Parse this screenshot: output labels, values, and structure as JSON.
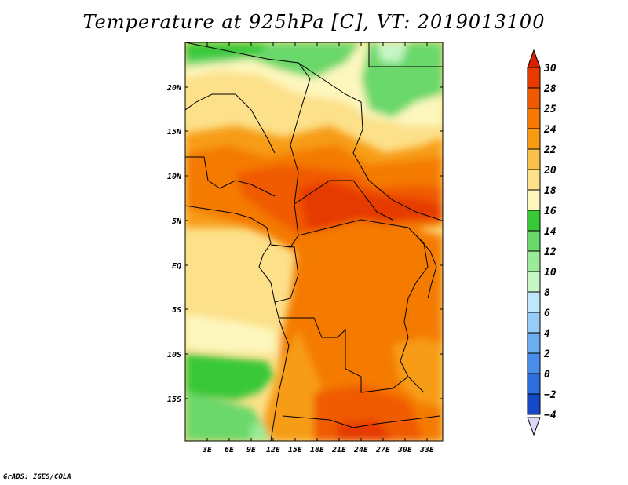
{
  "title": "Temperature at 925hPa [C], VT: 2019013100",
  "credit": "GrADS: IGES/COLA",
  "map": {
    "lat_labels": [
      "20N",
      "15N",
      "10N",
      "5N",
      "EQ",
      "5S",
      "10S",
      "15S"
    ],
    "lon_labels": [
      "3E",
      "6E",
      "9E",
      "12E",
      "15E",
      "18E",
      "21E",
      "24E",
      "27E",
      "30E",
      "33E"
    ]
  },
  "colorbar": {
    "labels": [
      "30",
      "28",
      "25",
      "24",
      "22",
      "20",
      "18",
      "16",
      "14",
      "12",
      "10",
      "8",
      "6",
      "4",
      "2",
      "0",
      "-2",
      "-4"
    ],
    "colors": [
      "#e63a00",
      "#f05a00",
      "#f47a00",
      "#f79c12",
      "#fac04a",
      "#fce08a",
      "#fdf7be",
      "#38c838",
      "#6ad86a",
      "#9aec9a",
      "#c6f6c6",
      "#bfe6fb",
      "#96ccf5",
      "#6aaef0",
      "#4a8eeb",
      "#2a6ee0",
      "#1648c8",
      "#0a1a90"
    ],
    "top_cap": "#d62000",
    "bottom_cap": "#dcd8f8"
  }
}
